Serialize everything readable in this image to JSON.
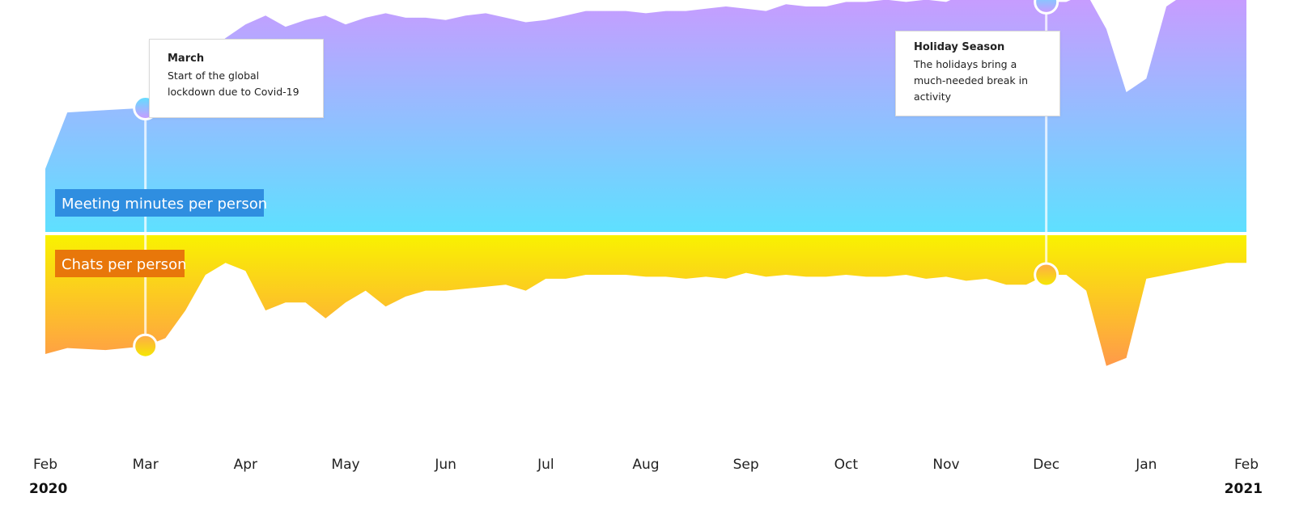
{
  "chart_data": {
    "type": "area",
    "categories": [
      "Feb",
      "Mar",
      "Apr",
      "May",
      "Jun",
      "Jul",
      "Aug",
      "Sep",
      "Oct",
      "Nov",
      "Dec",
      "Jan",
      "Feb"
    ],
    "year_labels": {
      "start": "2020",
      "end": "2021"
    },
    "series": [
      {
        "name": "Meeting minutes per person",
        "color_top": "#cc99ff",
        "color_bottom": "#5ee0ff",
        "label_bg": "#2f8ee0",
        "x": [
          0,
          0.22,
          0.6,
          1.0,
          1.2,
          1.4,
          1.6,
          1.8,
          2.0,
          2.2,
          2.4,
          2.6,
          2.8,
          3.0,
          3.2,
          3.4,
          3.6,
          3.8,
          4.0,
          4.2,
          4.4,
          4.6,
          4.8,
          5.0,
          5.2,
          5.4,
          5.6,
          5.8,
          6.0,
          6.2,
          6.4,
          6.6,
          6.8,
          7.0,
          7.2,
          7.4,
          7.6,
          7.8,
          8.0,
          8.2,
          8.4,
          8.6,
          8.8,
          9.0,
          9.2,
          9.4,
          9.6,
          9.8,
          10.0,
          10.2,
          10.4,
          10.6,
          10.8,
          11.0,
          11.2,
          11.4,
          11.6,
          11.8,
          12.0
        ],
        "values": [
          0.28,
          0.53,
          0.54,
          0.55,
          0.66,
          0.72,
          0.78,
          0.86,
          0.92,
          0.96,
          0.91,
          0.94,
          0.96,
          0.92,
          0.95,
          0.97,
          0.95,
          0.95,
          0.94,
          0.96,
          0.97,
          0.95,
          0.93,
          0.94,
          0.96,
          0.98,
          0.98,
          0.98,
          0.97,
          0.98,
          0.98,
          0.99,
          1.0,
          0.99,
          0.98,
          1.01,
          1.0,
          1.0,
          1.02,
          1.02,
          1.03,
          1.02,
          1.03,
          1.02,
          1.06,
          1.04,
          1.04,
          1.05,
          1.02,
          1.02,
          1.06,
          0.9,
          0.62,
          0.68,
          1.0,
          1.06,
          1.08,
          1.08,
          1.08
        ],
        "annotations": [
          {
            "x": 1.0,
            "title": "March",
            "text": "Start of the global lockdown due to Covid-19"
          },
          {
            "x": 10.0,
            "title": "Holiday Season",
            "text": "The holidays bring a much-needed break in activity"
          }
        ]
      },
      {
        "name": "Chats per person",
        "color_top": "#f9f200",
        "color_bottom": "#ff9a4a",
        "label_bg": "#e8770a",
        "x": [
          0,
          0.22,
          0.6,
          1.0,
          1.2,
          1.4,
          1.6,
          1.8,
          2.0,
          2.2,
          2.4,
          2.6,
          2.8,
          3.0,
          3.2,
          3.4,
          3.6,
          3.8,
          4.0,
          4.2,
          4.4,
          4.6,
          4.8,
          5.0,
          5.2,
          5.4,
          5.6,
          5.8,
          6.0,
          6.2,
          6.4,
          6.6,
          6.8,
          7.0,
          7.2,
          7.4,
          7.6,
          7.8,
          8.0,
          8.2,
          8.4,
          8.6,
          8.8,
          9.0,
          9.2,
          9.4,
          9.6,
          9.8,
          10.0,
          10.2,
          10.4,
          10.6,
          10.8,
          11.0,
          11.2,
          11.4,
          11.6,
          11.8,
          12.0
        ],
        "values": [
          0.6,
          0.57,
          0.58,
          0.56,
          0.52,
          0.38,
          0.2,
          0.14,
          0.18,
          0.38,
          0.34,
          0.34,
          0.42,
          0.34,
          0.28,
          0.36,
          0.31,
          0.28,
          0.28,
          0.27,
          0.26,
          0.25,
          0.28,
          0.22,
          0.22,
          0.2,
          0.2,
          0.2,
          0.21,
          0.21,
          0.22,
          0.21,
          0.22,
          0.19,
          0.21,
          0.2,
          0.21,
          0.21,
          0.2,
          0.21,
          0.21,
          0.2,
          0.22,
          0.21,
          0.23,
          0.22,
          0.25,
          0.25,
          0.2,
          0.2,
          0.28,
          0.66,
          0.62,
          0.22,
          0.2,
          0.18,
          0.16,
          0.14,
          0.14
        ],
        "annotations": [
          {
            "x": 1.0
          },
          {
            "x": 10.0
          }
        ]
      }
    ],
    "grid": false,
    "legend": "inline labels"
  }
}
